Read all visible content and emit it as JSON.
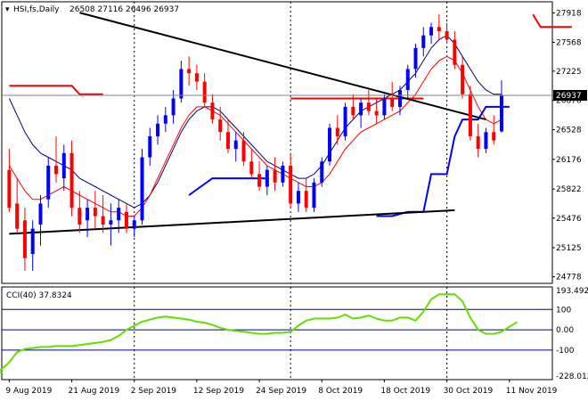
{
  "chart_data": [
    {
      "type": "candlestick",
      "title": "HSI,fs,Daily",
      "ohlc_readout": "26508 27116 26496 26937",
      "last_price": 26937,
      "y_ticks": [
        24778,
        25125,
        25476,
        25822,
        26176,
        26528,
        26876,
        27225,
        27568,
        27918
      ],
      "ylim": [
        24700,
        28050
      ],
      "x_labels": [
        "9 Aug 2019",
        "21 Aug 2019",
        "2 Sep 2019",
        "12 Sep 2019",
        "24 Sep 2019",
        "8 Oct 2019",
        "18 Oct 2019",
        "30 Oct 2019",
        "11 Nov 2019"
      ],
      "x_label_index": [
        0,
        8,
        16,
        24,
        32,
        40,
        48,
        56,
        64
      ],
      "vertical_grid_index": [
        16,
        36,
        56
      ],
      "candles": [
        [
          26050,
          26300,
          25550,
          25600
        ],
        [
          25650,
          25950,
          25300,
          25350
        ],
        [
          25450,
          25600,
          24850,
          25000
        ],
        [
          25050,
          25450,
          24850,
          25350
        ],
        [
          25400,
          25750,
          25150,
          25650
        ],
        [
          25700,
          26200,
          25600,
          26100
        ],
        [
          26100,
          26450,
          25900,
          26000
        ],
        [
          25950,
          26350,
          25800,
          26250
        ],
        [
          26250,
          26400,
          25500,
          25600
        ],
        [
          25600,
          25800,
          25300,
          25400
        ],
        [
          25450,
          25700,
          25250,
          25600
        ],
        [
          25600,
          25800,
          25350,
          25500
        ],
        [
          25500,
          25750,
          25300,
          25400
        ],
        [
          25400,
          25650,
          25150,
          25450
        ],
        [
          25450,
          25700,
          25300,
          25600
        ],
        [
          25550,
          25650,
          25300,
          25350
        ],
        [
          25350,
          25500,
          25250,
          25450
        ],
        [
          25450,
          26300,
          25400,
          26200
        ],
        [
          26200,
          26550,
          26100,
          26450
        ],
        [
          26450,
          26700,
          26350,
          26600
        ],
        [
          26600,
          26800,
          26500,
          26700
        ],
        [
          26700,
          27000,
          26600,
          26900
        ],
        [
          26900,
          27350,
          26850,
          27250
        ],
        [
          27250,
          27400,
          27050,
          27200
        ],
        [
          27200,
          27300,
          27000,
          27100
        ],
        [
          27100,
          27200,
          26800,
          26850
        ],
        [
          26850,
          26950,
          26600,
          26650
        ],
        [
          26650,
          26800,
          26400,
          26500
        ],
        [
          26500,
          26650,
          26250,
          26300
        ],
        [
          26300,
          26500,
          26150,
          26400
        ],
        [
          26400,
          26500,
          26100,
          26150
        ],
        [
          26150,
          26300,
          25950,
          26000
        ],
        [
          26000,
          26150,
          25800,
          25850
        ],
        [
          25850,
          26100,
          25750,
          26050
        ],
        [
          26050,
          26200,
          25800,
          25900
        ],
        [
          25900,
          26150,
          25850,
          26100
        ],
        [
          26100,
          26250,
          25600,
          25650
        ],
        [
          25650,
          25900,
          25550,
          25800
        ],
        [
          25800,
          25950,
          25550,
          25600
        ],
        [
          25600,
          25950,
          25550,
          25900
        ],
        [
          25900,
          26200,
          25850,
          26150
        ],
        [
          26150,
          26600,
          26100,
          26550
        ],
        [
          26550,
          26700,
          26350,
          26450
        ],
        [
          26450,
          26850,
          26400,
          26800
        ],
        [
          26800,
          26950,
          26650,
          26700
        ],
        [
          26700,
          26900,
          26550,
          26850
        ],
        [
          26850,
          27000,
          26700,
          26750
        ],
        [
          26750,
          26900,
          26600,
          26700
        ],
        [
          26700,
          26950,
          26650,
          26900
        ],
        [
          26900,
          27100,
          26750,
          26800
        ],
        [
          26800,
          27050,
          26700,
          27000
        ],
        [
          27000,
          27300,
          26900,
          27250
        ],
        [
          27250,
          27550,
          27150,
          27500
        ],
        [
          27500,
          27750,
          27400,
          27650
        ],
        [
          27650,
          27800,
          27550,
          27750
        ],
        [
          27750,
          27900,
          27600,
          27700
        ],
        [
          27700,
          27800,
          27550,
          27600
        ],
        [
          27600,
          27700,
          27250,
          27300
        ],
        [
          27300,
          27400,
          26900,
          26950
        ],
        [
          26950,
          27050,
          26400,
          26450
        ],
        [
          26450,
          26600,
          26200,
          26300
        ],
        [
          26300,
          26550,
          26250,
          26500
        ],
        [
          26500,
          26700,
          26350,
          26400
        ],
        [
          26508,
          27116,
          26496,
          26937
        ]
      ],
      "series_style": {
        "up_color": "#0000ff",
        "down_color": "#ff0000",
        "ma_fast_color": "#ff0000",
        "ma_slow_color": "#000080",
        "blue_overlay_color": "#0000ff",
        "red_overlay_color": "#ff0000",
        "trendline_color": "#000000"
      },
      "ma_fast": [
        26100,
        25950,
        25800,
        25700,
        25700,
        25750,
        25800,
        25850,
        25800,
        25750,
        25700,
        25650,
        25600,
        25550,
        25550,
        25500,
        25500,
        25600,
        25750,
        25950,
        26150,
        26350,
        26550,
        26700,
        26800,
        26800,
        26750,
        26700,
        26600,
        26500,
        26400,
        26300,
        26200,
        26100,
        26050,
        26000,
        25950,
        25900,
        25850,
        25850,
        25900,
        26000,
        26150,
        26300,
        26400,
        26500,
        26550,
        26600,
        26650,
        26700,
        26750,
        26850,
        26950,
        27100,
        27250,
        27350,
        27400,
        27350,
        27200,
        27000,
        26800,
        26650,
        26600,
        26650
      ],
      "ma_slow": [
        26900,
        26700,
        26500,
        26350,
        26250,
        26200,
        26150,
        26100,
        26050,
        25950,
        25900,
        25850,
        25800,
        25750,
        25700,
        25650,
        25600,
        25650,
        25750,
        25900,
        26100,
        26300,
        26500,
        26650,
        26750,
        26800,
        26800,
        26750,
        26650,
        26550,
        26450,
        26350,
        26250,
        26150,
        26100,
        26050,
        26000,
        25950,
        25950,
        26000,
        26100,
        26250,
        26400,
        26550,
        26650,
        26750,
        26800,
        26850,
        26900,
        26950,
        27000,
        27100,
        27200,
        27350,
        27500,
        27600,
        27650,
        27550,
        27400,
        27250,
        27100,
        27000,
        26950,
        26950
      ],
      "blue_overlay": [
        [
          23,
          25750
        ],
        [
          26,
          25950
        ],
        [
          32,
          25950
        ],
        [
          33,
          25950
        ],
        [
          47,
          25500
        ],
        [
          49,
          25500
        ],
        [
          51,
          25550
        ],
        [
          53,
          25550
        ],
        [
          54,
          26000
        ],
        [
          56,
          26000
        ],
        [
          57,
          26450
        ],
        [
          58,
          26650
        ],
        [
          60,
          26650
        ],
        [
          61,
          26800
        ],
        [
          64,
          26800
        ]
      ],
      "red_overlay": [
        [
          0,
          27050
        ],
        [
          8,
          27050
        ],
        [
          9,
          26950
        ],
        [
          12,
          26950
        ],
        [
          36,
          26900
        ],
        [
          49,
          26900
        ],
        [
          51,
          26900
        ],
        [
          53,
          26900
        ],
        [
          67,
          27900
        ],
        [
          68,
          27750
        ],
        [
          72,
          27750
        ]
      ],
      "trendlines": [
        {
          "from": [
            9,
            27920
          ],
          "to": [
            61,
            26650
          ]
        },
        {
          "from": [
            0,
            25290
          ],
          "to": [
            57,
            25570
          ]
        }
      ]
    },
    {
      "type": "line",
      "title": "CCI(40) 37.8324",
      "y_ticks": [
        "193.492",
        "100",
        "0.00",
        "-100",
        "-228.012"
      ],
      "levels": [
        100,
        0,
        -100
      ],
      "ylim": [
        -228.012,
        193.492
      ],
      "series_style": {
        "line_color": "#66dd00",
        "level_color": "#000080"
      },
      "values": [
        -210,
        -205,
        -195,
        -160,
        -110,
        -95,
        -90,
        -85,
        -85,
        -80,
        -80,
        -80,
        -75,
        -70,
        -65,
        -60,
        -50,
        -30,
        0,
        20,
        40,
        50,
        60,
        65,
        60,
        55,
        50,
        40,
        35,
        25,
        10,
        0,
        -5,
        -10,
        -15,
        -20,
        -20,
        -15,
        -15,
        -10,
        20,
        45,
        55,
        55,
        55,
        60,
        75,
        55,
        60,
        70,
        55,
        45,
        45,
        60,
        60,
        45,
        90,
        150,
        175,
        175,
        175,
        140,
        60,
        0,
        -20,
        -20,
        -10,
        15,
        37.8
      ]
    }
  ]
}
